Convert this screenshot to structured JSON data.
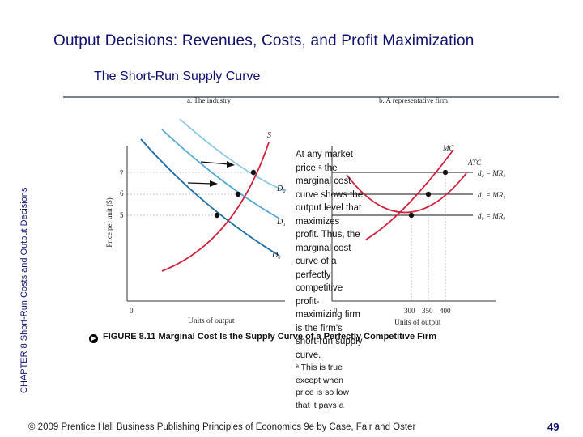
{
  "slide": {
    "title": "Output Decisions:  Revenues, Costs, and Profit Maximization",
    "subtitle": "The Short-Run Supply Curve",
    "side_label": "CHAPTER 8  Short-Run Costs and Output Decisions",
    "note_main": "At any market price,ᵃ the marginal cost curve shows the output level that maximizes profit. Thus, the marginal cost curve of a perfectly competitive profit-maximizing firm is the firm's short-run supply curve.",
    "note_footnote": "ᵃ This is true except when price is so low that it pays a",
    "caption": "FIGURE 8.11  Marginal Cost Is the Supply Curve of a Perfectly Competitive Firm",
    "footer": "© 2009 Prentice Hall Business Publishing   Principles of Economics 9e by Case, Fair and Oster",
    "page_number": "49"
  },
  "figure": {
    "panel_a": {
      "heading": "a. The industry",
      "y_axis_label": "Price per unit ($)",
      "x_axis_label": "Units of output",
      "origin_label": "0",
      "y_ticks": [
        "7",
        "6",
        "5"
      ],
      "curve_labels": {
        "supply": "S",
        "d2": "D₂",
        "d1": "D₁",
        "d0": "D₀"
      }
    },
    "panel_b": {
      "heading": "b. A representative firm",
      "x_axis_label": "Units of output",
      "origin_label": "0",
      "x_ticks": [
        "300",
        "350",
        "400"
      ],
      "curve_labels": {
        "mc": "MC",
        "atc": "ATC",
        "d2": "d₂ = MR₂",
        "d1": "d₁ = MR₁",
        "d0": "d₀ = MR₀"
      }
    },
    "colors": {
      "supply_curve": "#d21f3c",
      "demand_d2": "#8cc7e8",
      "demand_d1": "#54a8d6",
      "demand_d0": "#1d6fa5",
      "heading_text": "#10106e"
    }
  }
}
